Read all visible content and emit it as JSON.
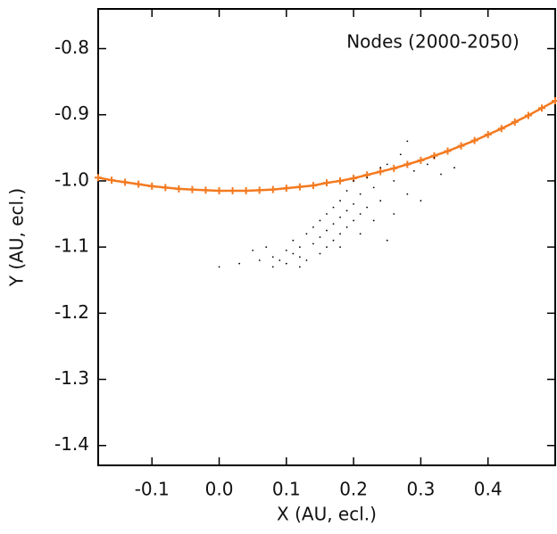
{
  "chart_data": {
    "type": "scatter",
    "annotation": "Nodes (2000-2050)",
    "x_label": "X (AU, ecl.)",
    "y_label": "Y (AU, ecl.)",
    "xlim": [
      -0.18,
      0.5
    ],
    "ylim": [
      -1.43,
      -0.74
    ],
    "xticks": [
      -0.1,
      {
        "value": 0,
        "label": "0.0"
      },
      0.1,
      0.2,
      0.3,
      0.4
    ],
    "yticks": [
      -0.8,
      -0.9,
      {
        "value": -1,
        "label": "-1.0"
      },
      -1.1,
      -1.2,
      -1.3,
      -1.4
    ],
    "series": [
      {
        "color": "#f47a20",
        "marker": "plus",
        "line": true,
        "x": [
          -0.18,
          -0.16,
          -0.14,
          -0.12,
          -0.1,
          -0.08,
          -0.06,
          -0.04,
          -0.02,
          0,
          0.02,
          0.04,
          0.06,
          0.08,
          0.1,
          0.12,
          0.14,
          0.16,
          0.18,
          0.2,
          0.22,
          0.24,
          0.26,
          0.28,
          0.3,
          0.32,
          0.34,
          0.36,
          0.38,
          0.4,
          0.42,
          0.44,
          0.46,
          0.48,
          0.5
        ],
        "values": [
          -0.995,
          -0.999,
          -1.002,
          -1.005,
          -1.008,
          -1.01,
          -1.012,
          -1.013,
          -1.014,
          -1.015,
          -1.015,
          -1.015,
          -1.014,
          -1.013,
          -1.011,
          -1.009,
          -1.007,
          -1.003,
          -1,
          -0.996,
          -0.991,
          -0.986,
          -0.981,
          -0.975,
          -0.969,
          -0.962,
          -0.955,
          -0.947,
          -0.939,
          -0.93,
          -0.921,
          -0.911,
          -0.901,
          -0.89,
          -0.879
        ]
      },
      {
        "color": "#000000",
        "marker": "dot",
        "line": false,
        "x": [
          0,
          0.03,
          0.06,
          0.07,
          0.08,
          0.09,
          0.1,
          0.1,
          0.11,
          0.11,
          0.12,
          0.12,
          0.13,
          0.13,
          0.14,
          0.14,
          0.15,
          0.15,
          0.15,
          0.16,
          0.16,
          0.16,
          0.17,
          0.17,
          0.17,
          0.18,
          0.18,
          0.18,
          0.18,
          0.19,
          0.19,
          0.19,
          0.2,
          0.2,
          0.2,
          0.21,
          0.21,
          0.21,
          0.22,
          0.22,
          0.23,
          0.23,
          0.24,
          0.24,
          0.25,
          0.25,
          0.26,
          0.26,
          0.27,
          0.28,
          0.28,
          0.29,
          0.3,
          0.31,
          0.32,
          0.33,
          0.35,
          0.12,
          0.08,
          0.05
        ],
        "values": [
          -1.13,
          -1.125,
          -1.12,
          -1.1,
          -1.115,
          -1.12,
          -1.105,
          -1.125,
          -1.11,
          -1.09,
          -1.115,
          -1.1,
          -1.08,
          -1.12,
          -1.095,
          -1.07,
          -1.11,
          -1.085,
          -1.06,
          -1.1,
          -1.075,
          -1.05,
          -1.09,
          -1.065,
          -1.04,
          -1.1,
          -1.08,
          -1.055,
          -1.03,
          -1.07,
          -1.045,
          -1.015,
          -1.06,
          -1.035,
          -1,
          -1.08,
          -1.05,
          -1.02,
          -1.04,
          -0.995,
          -1.06,
          -1.01,
          -0.98,
          -1.03,
          -1.09,
          -0.975,
          -1,
          -1.05,
          -0.96,
          -0.94,
          -1.02,
          -0.985,
          -1.03,
          -0.975,
          -0.965,
          -0.99,
          -0.98,
          -1.13,
          -1.13,
          -1.105
        ]
      }
    ]
  }
}
